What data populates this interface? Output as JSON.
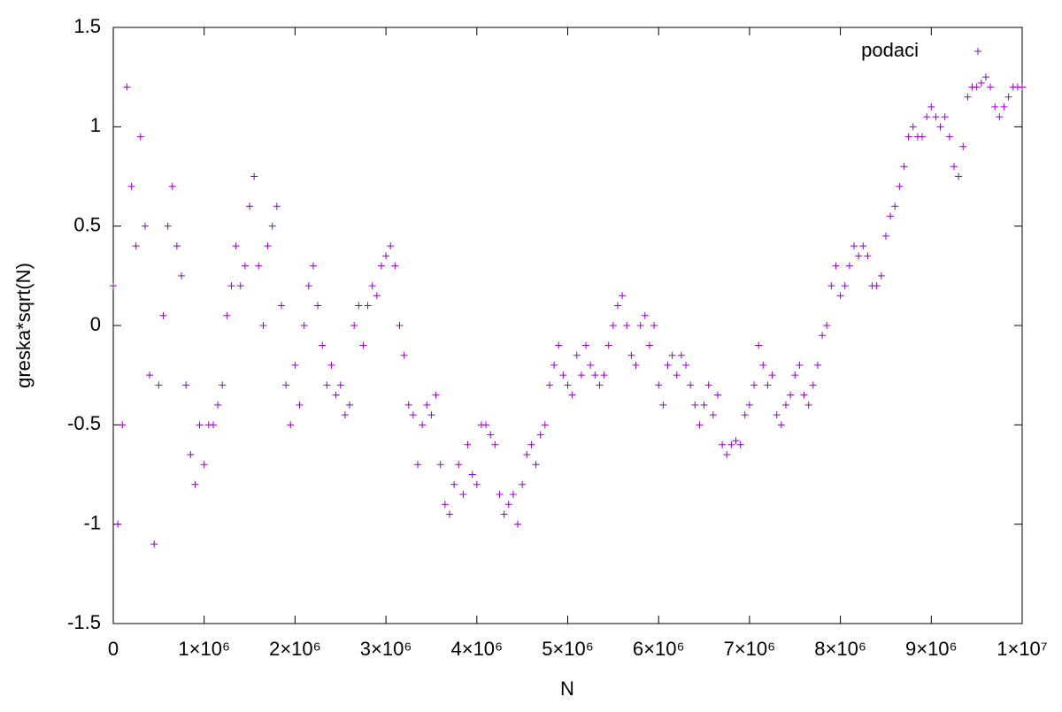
{
  "chart_data": {
    "type": "scatter",
    "xlabel": "N",
    "ylabel": "greska*sqrt(N)",
    "legend": "top-right",
    "grid": false,
    "xlim": [
      0,
      10000000
    ],
    "ylim": [
      -1.5,
      1.5
    ],
    "xticks": [
      0,
      {
        "value": 1000000,
        "label": "1×10⁶"
      },
      {
        "value": 2000000,
        "label": "2×10⁶"
      },
      {
        "value": 3000000,
        "label": "3×10⁶"
      },
      {
        "value": 4000000,
        "label": "4×10⁶"
      },
      {
        "value": 5000000,
        "label": "5×10⁶"
      },
      {
        "value": 6000000,
        "label": "6×10⁶"
      },
      {
        "value": 7000000,
        "label": "7×10⁶"
      },
      {
        "value": 8000000,
        "label": "8×10⁶"
      },
      {
        "value": 9000000,
        "label": "9×10⁶"
      },
      {
        "value": 10000000,
        "label": "1×10⁷"
      }
    ],
    "yticks": [
      -1.5,
      -1,
      -0.5,
      0,
      0.5,
      1,
      1.5
    ],
    "x": [
      0,
      50000,
      100000,
      150000,
      200000,
      250000,
      300000,
      350000,
      400000,
      450000,
      500000,
      550000,
      600000,
      650000,
      700000,
      750000,
      800000,
      850000,
      900000,
      950000,
      1000000,
      1050000,
      1100000,
      1150000,
      1200000,
      1250000,
      1300000,
      1350000,
      1400000,
      1450000,
      1500000,
      1550000,
      1600000,
      1650000,
      1700000,
      1750000,
      1800000,
      1850000,
      1900000,
      1950000,
      2000000,
      2050000,
      2100000,
      2150000,
      2200000,
      2250000,
      2300000,
      2350000,
      2400000,
      2450000,
      2500000,
      2550000,
      2600000,
      2650000,
      2700000,
      2750000,
      2800000,
      2850000,
      2900000,
      2950000,
      3000000,
      3050000,
      3100000,
      3150000,
      3200000,
      3250000,
      3300000,
      3350000,
      3400000,
      3450000,
      3500000,
      3550000,
      3600000,
      3650000,
      3700000,
      3750000,
      3800000,
      3850000,
      3900000,
      3950000,
      4000000,
      4050000,
      4100000,
      4150000,
      4200000,
      4250000,
      4300000,
      4350000,
      4400000,
      4450000,
      4500000,
      4550000,
      4600000,
      4650000,
      4700000,
      4750000,
      4800000,
      4850000,
      4900000,
      4950000,
      5000000,
      5050000,
      5100000,
      5150000,
      5200000,
      5250000,
      5300000,
      5350000,
      5400000,
      5450000,
      5500000,
      5550000,
      5600000,
      5650000,
      5700000,
      5750000,
      5800000,
      5850000,
      5900000,
      5950000,
      6000000,
      6050000,
      6100000,
      6150000,
      6200000,
      6250000,
      6300000,
      6350000,
      6400000,
      6450000,
      6500000,
      6550000,
      6600000,
      6650000,
      6700000,
      6750000,
      6800000,
      6850000,
      6900000,
      6950000,
      7000000,
      7050000,
      7100000,
      7150000,
      7200000,
      7250000,
      7300000,
      7350000,
      7400000,
      7450000,
      7500000,
      7550000,
      7600000,
      7650000,
      7700000,
      7750000,
      7800000,
      7850000,
      7900000,
      7950000,
      8000000,
      8050000,
      8100000,
      8150000,
      8200000,
      8250000,
      8300000,
      8350000,
      8400000,
      8450000,
      8500000,
      8550000,
      8600000,
      8650000,
      8700000,
      8750000,
      8800000,
      8850000,
      8900000,
      8950000,
      9000000,
      9050000,
      9100000,
      9150000,
      9200000,
      9250000,
      9300000,
      9350000,
      9400000,
      9450000,
      9500000,
      9550000,
      9600000,
      9650000,
      9700000,
      9750000,
      9800000,
      9850000,
      9900000,
      9950000,
      10000000
    ],
    "series": [
      {
        "name": "podaci",
        "color": "#9400d3",
        "values": [
          0.2,
          -1.0,
          -0.5,
          1.2,
          0.7,
          0.4,
          0.95,
          0.5,
          -0.25,
          -1.1,
          -0.3,
          0.05,
          0.5,
          0.7,
          0.4,
          0.25,
          -0.3,
          -0.65,
          -0.8,
          -0.5,
          -0.7,
          -0.5,
          -0.5,
          -0.4,
          -0.3,
          0.05,
          0.2,
          0.4,
          0.2,
          0.3,
          0.6,
          0.75,
          0.3,
          0.0,
          0.4,
          0.5,
          0.6,
          0.1,
          -0.3,
          -0.5,
          -0.2,
          -0.4,
          0.0,
          0.2,
          0.3,
          0.1,
          -0.1,
          -0.3,
          -0.2,
          -0.35,
          -0.3,
          -0.45,
          -0.4,
          0.0,
          0.1,
          -0.1,
          0.1,
          0.2,
          0.15,
          0.3,
          0.35,
          0.4,
          0.3,
          0.0,
          -0.15,
          -0.4,
          -0.45,
          -0.7,
          -0.5,
          -0.4,
          -0.45,
          -0.35,
          -0.7,
          -0.9,
          -0.95,
          -0.8,
          -0.7,
          -0.85,
          -0.6,
          -0.75,
          -0.8,
          -0.5,
          -0.5,
          -0.55,
          -0.6,
          -0.85,
          -0.95,
          -0.9,
          -0.85,
          -1.0,
          -0.8,
          -0.65,
          -0.6,
          -0.7,
          -0.55,
          -0.5,
          -0.3,
          -0.2,
          -0.1,
          -0.25,
          -0.3,
          -0.35,
          -0.15,
          -0.25,
          -0.1,
          -0.2,
          -0.25,
          -0.3,
          -0.25,
          -0.1,
          0.0,
          0.1,
          0.15,
          0.0,
          -0.15,
          -0.2,
          0.0,
          0.05,
          -0.1,
          0.0,
          -0.3,
          -0.4,
          -0.2,
          -0.15,
          -0.25,
          -0.15,
          -0.2,
          -0.3,
          -0.4,
          -0.5,
          -0.4,
          -0.3,
          -0.45,
          -0.35,
          -0.6,
          -0.65,
          -0.6,
          -0.58,
          -0.6,
          -0.45,
          -0.4,
          -0.3,
          -0.1,
          -0.2,
          -0.3,
          -0.25,
          -0.45,
          -0.5,
          -0.4,
          -0.35,
          -0.25,
          -0.2,
          -0.35,
          -0.4,
          -0.3,
          -0.2,
          -0.05,
          0.0,
          0.2,
          0.3,
          0.15,
          0.2,
          0.3,
          0.4,
          0.35,
          0.4,
          0.35,
          0.2,
          0.2,
          0.25,
          0.45,
          0.55,
          0.6,
          0.7,
          0.8,
          0.95,
          1.0,
          0.95,
          0.95,
          1.05,
          1.1,
          1.05,
          1.0,
          1.05,
          0.95,
          0.8,
          0.75,
          0.9,
          1.15,
          1.2,
          1.2,
          1.22,
          1.25,
          1.2,
          1.1,
          1.05,
          1.1,
          1.15,
          1.2,
          1.2,
          1.2
        ]
      }
    ]
  }
}
